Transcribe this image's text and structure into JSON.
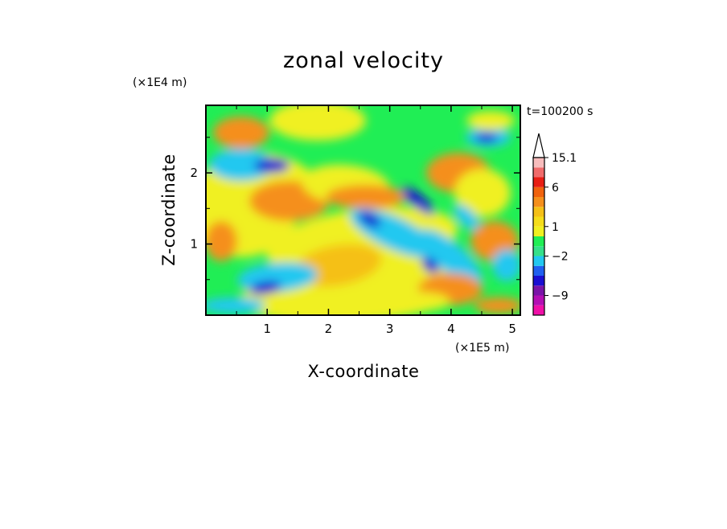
{
  "chart_data": {
    "type": "heatmap",
    "title": "zonal velocity",
    "xlabel": "X-coordinate",
    "ylabel": "Z-coordinate",
    "x_unit": "(×1E5 m)",
    "y_unit": "(×1E4 m)",
    "time_label": "t=100200 s",
    "xlim": [
      0,
      5.13
    ],
    "ylim": [
      0,
      2.95
    ],
    "x_ticks": [
      1,
      2,
      3,
      4,
      5
    ],
    "x_tick_labels": [
      "1",
      "2",
      "3",
      "4",
      "5"
    ],
    "y_ticks": [
      1,
      2
    ],
    "y_tick_labels": [
      "1",
      "2"
    ],
    "colorbar": {
      "levels": [
        -15.1,
        -12,
        -9,
        -6,
        -4,
        -3,
        -2,
        -1,
        0,
        1,
        2,
        3,
        4,
        6,
        9,
        12,
        15.1
      ],
      "labeled_values": [
        "15.1",
        "6",
        "1",
        "−2",
        "−9"
      ],
      "colors": [
        "#f010a8",
        "#b40fb4",
        "#7a14a8",
        "#1a0fd2",
        "#2060f0",
        "#22c8f0",
        "#35e08a",
        "#20ee55",
        "#f0f020",
        "#f5dd1a",
        "#f5c017",
        "#f58f1c",
        "#f0620e",
        "#e81e14",
        "#f06b6b",
        "#f7bcbc"
      ],
      "extend_color": "#ffffff"
    }
  }
}
